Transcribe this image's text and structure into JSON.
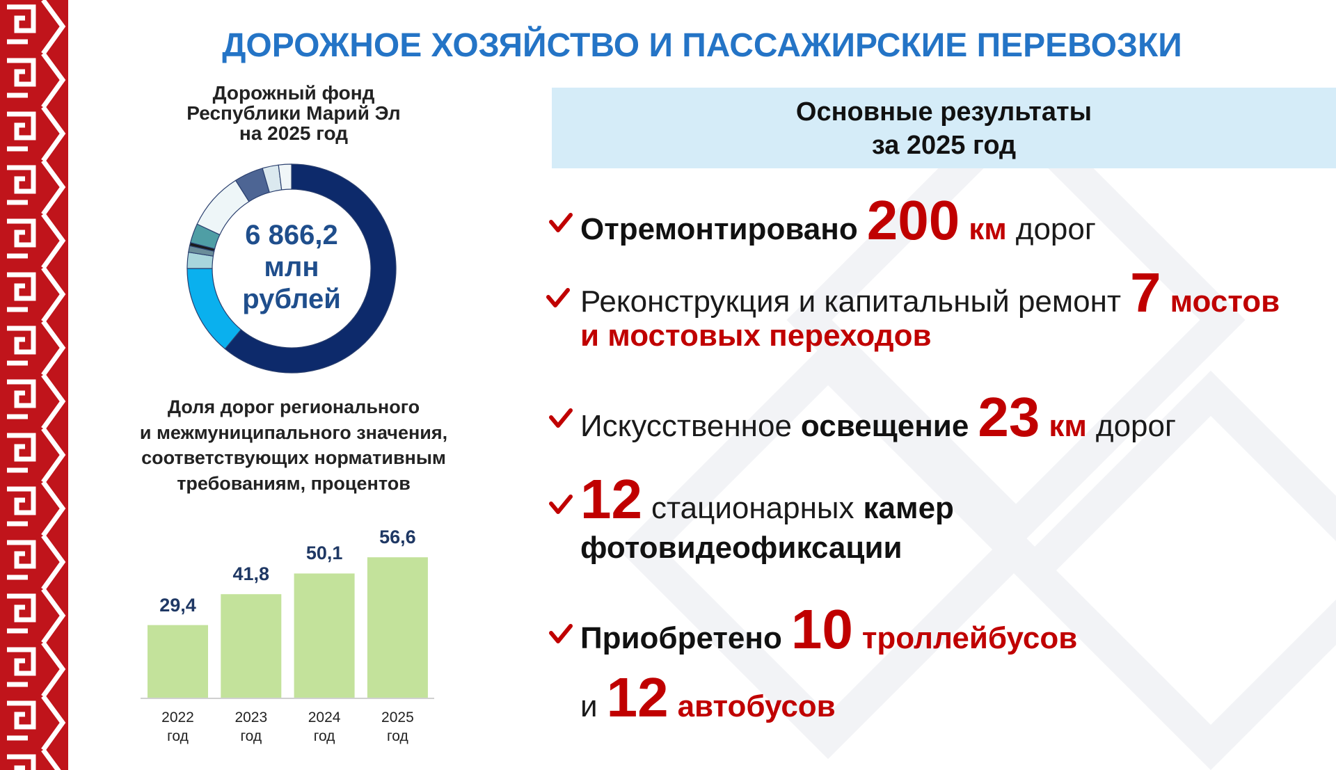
{
  "title": "ДОРОЖНОЕ ХОЗЯЙСТВО И ПАССАЖИРСКИЕ ПЕРЕВОЗКИ",
  "chart_data": [
    {
      "type": "donut",
      "title": [
        "Дорожный фонд",
        "Республики Марий Эл",
        "на 2025 год"
      ],
      "center_text": [
        "6 866,2",
        "млн",
        "рублей"
      ],
      "values": [
        61,
        14,
        2.5,
        1,
        0.5,
        3,
        9,
        4.5,
        2.5,
        2
      ],
      "colors": [
        "#0d2a6b",
        "#0ab0ee",
        "#a9d6dc",
        "#6a8d9a",
        "#1a1a1a",
        "#4f9ea5",
        "#eef6f8",
        "#4d6594",
        "#dbe9ef",
        "#f0f6f8"
      ]
    },
    {
      "type": "bar",
      "title": [
        "Доля дорог регионального",
        "и межмуниципального значения,",
        "соответствующих нормативным",
        "требованиям, процентов"
      ],
      "categories": [
        "2022 год",
        "2023 год",
        "2024 год",
        "2025 год"
      ],
      "values": [
        29.4,
        41.8,
        50.1,
        56.6
      ],
      "value_labels": [
        "29,4",
        "41,8",
        "50,1",
        "56,6"
      ],
      "color": "#c3e29b",
      "ylim": [
        0,
        60
      ]
    }
  ],
  "results": {
    "title": [
      "Основные результаты",
      "за 2025 год"
    ],
    "items": [
      {
        "lines": [
          [
            {
              "text": "Отремонтировано",
              "style": "bold"
            },
            {
              "text": "200",
              "style": "red-big"
            },
            {
              "text": "км",
              "style": "red"
            },
            {
              "text": "дорог",
              "style": "normal"
            }
          ]
        ]
      },
      {
        "lines": [
          [
            {
              "text": "Реконструкция и капитальный ремонт",
              "style": "normal"
            },
            {
              "text": "7",
              "style": "red-big"
            },
            {
              "text": "мостов",
              "style": "red"
            }
          ],
          [
            {
              "text": "и мостовых переходов",
              "style": "red"
            }
          ]
        ]
      },
      {
        "lines": [
          [
            {
              "text": "Искусственное",
              "style": "normal"
            },
            {
              "text": "освещение",
              "style": "bold"
            },
            {
              "text": "23",
              "style": "red-big"
            },
            {
              "text": "км",
              "style": "red"
            },
            {
              "text": "дорог",
              "style": "normal"
            }
          ]
        ]
      },
      {
        "lines": [
          [
            {
              "text": "12",
              "style": "red-big"
            },
            {
              "text": "стационарных",
              "style": "normal"
            },
            {
              "text": "камер",
              "style": "bold"
            }
          ],
          [
            {
              "text": "фотовидеофиксации",
              "style": "bold"
            }
          ]
        ]
      },
      {
        "lines": [
          [
            {
              "text": "Приобретено",
              "style": "bold"
            },
            {
              "text": "10",
              "style": "red-big"
            },
            {
              "text": "троллейбусов",
              "style": "red"
            }
          ],
          [
            {
              "text": "и",
              "style": "normal"
            },
            {
              "text": "12",
              "style": "red-big"
            },
            {
              "text": "автобусов",
              "style": "red"
            }
          ]
        ]
      }
    ]
  }
}
